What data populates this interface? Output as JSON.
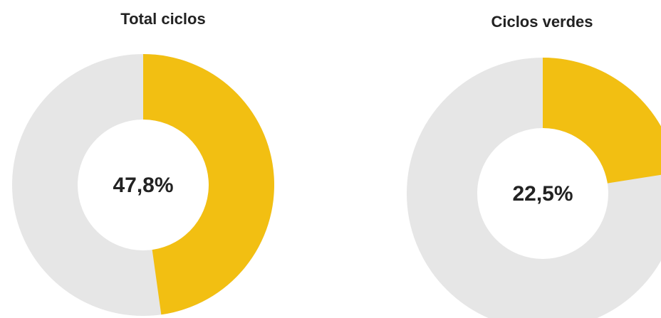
{
  "chart_data": [
    {
      "type": "donut",
      "title": "Total ciclos",
      "values": [
        47.8
      ],
      "value_labels": [
        "47,8%"
      ],
      "ylim": [
        0,
        100
      ],
      "color": "#f2bf12",
      "track_color": "#e6e6e6"
    },
    {
      "type": "donut",
      "title": "Ciclos verdes",
      "values": [
        22.5
      ],
      "value_labels": [
        "22,5%"
      ],
      "ylim": [
        0,
        100
      ],
      "color": "#f2bf12",
      "track_color": "#e6e6e6"
    }
  ]
}
